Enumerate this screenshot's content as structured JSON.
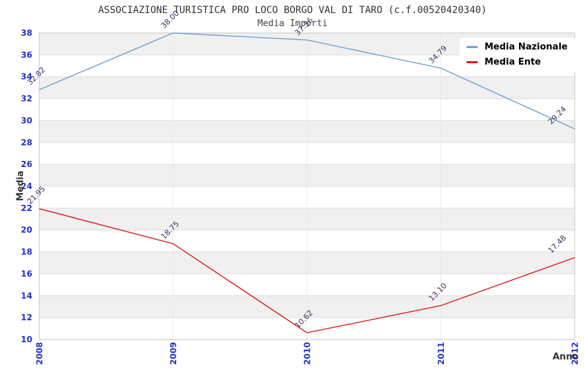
{
  "colors": {
    "tick_label": "#2233cc",
    "point_label": "#333366",
    "band_gray": "#f0f0f0",
    "band_white": "#ffffff",
    "grid_line": "#dcdcdc",
    "vgrid_line": "#e9e9e9",
    "plot_border": "#c6c6c6",
    "title_text": "#333333"
  },
  "chart_data": {
    "type": "line",
    "title": "ASSOCIAZIONE TURISTICA PRO LOCO BORGO VAL DI TARO (c.f.00520420340)",
    "subtitle": "Media Importi",
    "xlabel": "Anno",
    "ylabel": "Media",
    "x": [
      "2008",
      "2009",
      "2010",
      "2011",
      "2012"
    ],
    "series": [
      {
        "name": "Media Nazionale",
        "color": "#6f9fd6",
        "values": [
          32.82,
          38.0,
          37.36,
          34.79,
          29.24
        ]
      },
      {
        "name": "Media Ente",
        "color": "#e01717",
        "values": [
          21.95,
          18.75,
          10.62,
          13.1,
          17.48
        ]
      }
    ],
    "ylim": [
      10,
      38
    ],
    "ytick_step": 2,
    "grid": "horizontal-bands",
    "legend_position": "top-right",
    "point_labels": true,
    "point_label_decimals": 2
  }
}
